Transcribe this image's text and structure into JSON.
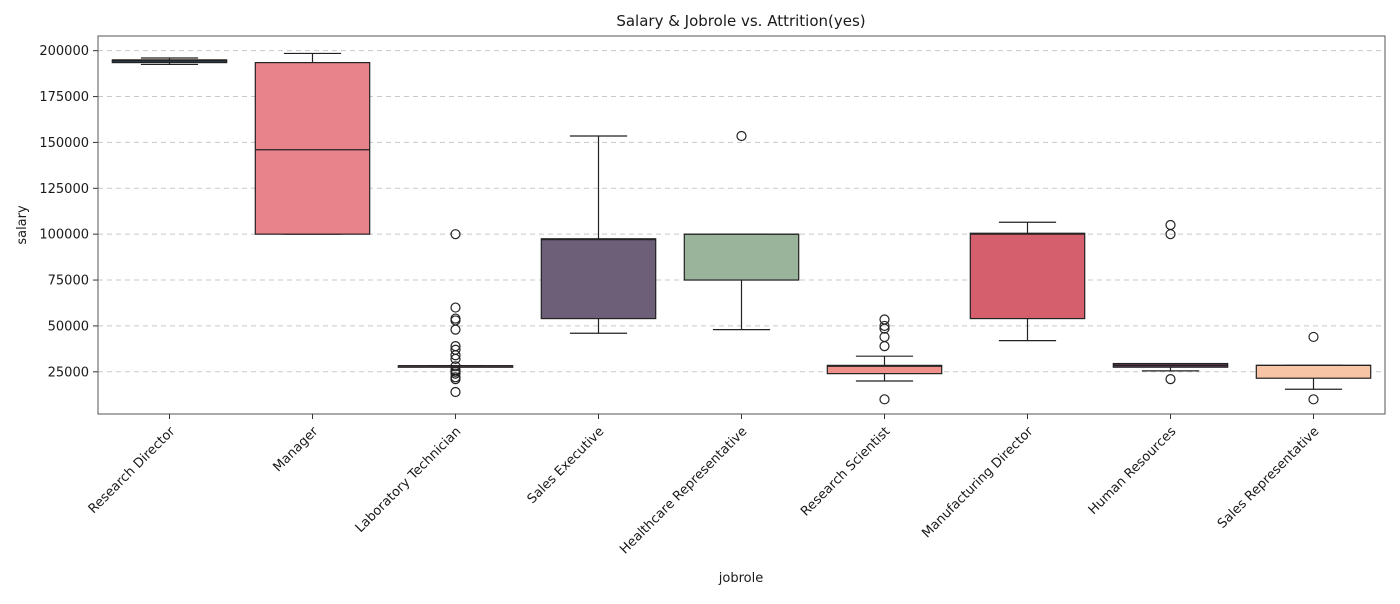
{
  "chart_data": {
    "type": "boxplot",
    "title": "Salary & Jobrole vs. Attrition(yes)",
    "xlabel": "jobrole",
    "ylabel": "salary",
    "ylim": [
      2000,
      208000
    ],
    "yticks": [
      25000,
      50000,
      75000,
      100000,
      125000,
      150000,
      175000,
      200000
    ],
    "grid": "horizontal dashed",
    "categories": [
      "Research Director",
      "Manager",
      "Laboratory Technician",
      "Sales Executive",
      "Healthcare Representative",
      "Research Scientist",
      "Manufacturing Director",
      "Human Resources",
      "Sales Representative"
    ],
    "boxes": [
      {
        "category": "Research Director",
        "color": "#2d4a5e",
        "whisker_low": 192500,
        "q1": 193500,
        "median": 194500,
        "q3": 195000,
        "whisker_high": 196000,
        "outliers": []
      },
      {
        "category": "Manager",
        "color": "#e8838b",
        "whisker_low": 100000,
        "q1": 100000,
        "median": 146000,
        "q3": 193500,
        "whisker_high": 198500,
        "outliers": []
      },
      {
        "category": "Laboratory Technician",
        "color": "#e8838b",
        "whisker_low": 28300,
        "q1": 28300,
        "median": 28300,
        "q3": 28300,
        "whisker_high": 28300,
        "outliers": [
          100000,
          60000,
          54000,
          53000,
          48000,
          39000,
          37000,
          34000,
          32000,
          28000,
          26000,
          25000,
          24000,
          22000,
          21000,
          14000
        ]
      },
      {
        "category": "Sales Executive",
        "color": "#6e5f78",
        "whisker_low": 46000,
        "q1": 54000,
        "median": 97000,
        "q3": 97500,
        "whisker_high": 153500,
        "outliers": []
      },
      {
        "category": "Healthcare Representative",
        "color": "#9ab39b",
        "whisker_low": 48000,
        "q1": 75000,
        "median": 100000,
        "q3": 100000,
        "whisker_high": 100000,
        "outliers": [
          153500
        ]
      },
      {
        "category": "Research Scientist",
        "color": "#f0908a",
        "whisker_low": 20000,
        "q1": 24000,
        "median": 28000,
        "q3": 28500,
        "whisker_high": 33500,
        "outliers": [
          53500,
          50000,
          48500,
          44000,
          39000,
          10000
        ]
      },
      {
        "category": "Manufacturing Director",
        "color": "#d65f6e",
        "whisker_low": 42000,
        "q1": 54000,
        "median": 100000,
        "q3": 100500,
        "whisker_high": 106500,
        "outliers": []
      },
      {
        "category": "Human Resources",
        "color": "#6a3d63",
        "whisker_low": 25500,
        "q1": 27500,
        "median": 28500,
        "q3": 29500,
        "whisker_high": 29500,
        "outliers": [
          105000,
          100000,
          21000
        ]
      },
      {
        "category": "Sales Representative",
        "color": "#f7c4a5",
        "whisker_low": 15500,
        "q1": 21500,
        "median": 28500,
        "q3": 28500,
        "whisker_high": 28500,
        "outliers": [
          44000,
          10000
        ]
      }
    ]
  }
}
